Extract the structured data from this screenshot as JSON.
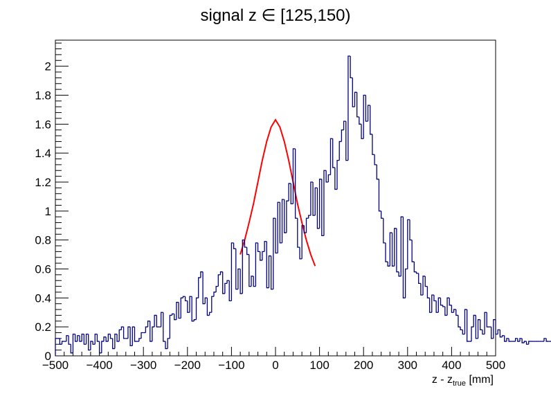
{
  "chart_data": {
    "type": "step",
    "title": "signal z ∈ [125,150)",
    "xlabel": {
      "main": "z - z",
      "subscript": "true",
      "unit": " [mm]"
    },
    "ylabel": "",
    "xlim": [
      -500,
      500
    ],
    "ylim": [
      0,
      2.18
    ],
    "grid": false,
    "legend": "none",
    "x_ticks": [
      -500,
      -400,
      -300,
      -200,
      -100,
      0,
      100,
      200,
      300,
      400,
      500
    ],
    "x_tick_labels": [
      "−500",
      "−400",
      "−300",
      "−200",
      "−100",
      "0",
      "100",
      "200",
      "300",
      "400",
      "500"
    ],
    "y_ticks": [
      0,
      0.2,
      0.4,
      0.6,
      0.8,
      1,
      1.2,
      1.4,
      1.6,
      1.8,
      2
    ],
    "y_tick_labels": [
      "0",
      "0.2",
      "0.4",
      "0.6",
      "0.8",
      "1",
      "1.2",
      "1.4",
      "1.6",
      "1.8",
      "2"
    ],
    "series": [
      {
        "kind": "histogram",
        "color": "#000080",
        "bin_edges_start": -500,
        "bin_width": 5,
        "values": [
          0.12,
          0.12,
          0.08,
          0.1,
          0.1,
          0.14,
          0.08,
          0.02,
          0.15,
          0.1,
          0.14,
          0.1,
          0.15,
          0.08,
          0.15,
          0.04,
          0.1,
          0.08,
          0.15,
          0.1,
          0.02,
          0.1,
          0.13,
          0.1,
          0.15,
          0.12,
          0.05,
          0.15,
          0.1,
          0.18,
          0.2,
          0.12,
          0.12,
          0.2,
          0.07,
          0.2,
          0.1,
          0.1,
          0.12,
          0.16,
          0.16,
          0.2,
          0.24,
          0.1,
          0.2,
          0.28,
          0.2,
          0.2,
          0.3,
          0.1,
          0.05,
          0.12,
          0.28,
          0.29,
          0.25,
          0.37,
          0.26,
          0.4,
          0.41,
          0.38,
          0.3,
          0.41,
          0.24,
          0.25,
          0.4,
          0.54,
          0.58,
          0.36,
          0.4,
          0.28,
          0.3,
          0.41,
          0.44,
          0.48,
          0.56,
          0.58,
          0.43,
          0.5,
          0.52,
          0.38,
          0.78,
          0.74,
          0.46,
          0.6,
          0.43,
          0.8,
          0.75,
          0.7,
          0.48,
          0.55,
          0.48,
          0.78,
          0.72,
          0.66,
          0.72,
          0.79,
          0.47,
          0.69,
          0.46,
          0.95,
          0.71,
          1.06,
          0.78,
          1.08,
          0.85,
          1.07,
          1.19,
          1.05,
          1.43,
          0.95,
          0.75,
          0.67,
          0.9,
          0.85,
          0.95,
          0.97,
          1.2,
          0.97,
          1.16,
          0.88,
          1.22,
          0.83,
          1.28,
          1.2,
          1.25,
          1.5,
          1.3,
          1.15,
          1.35,
          1.48,
          1.56,
          1.62,
          1.35,
          2.07,
          1.92,
          1.72,
          1.82,
          1.65,
          1.6,
          1.5,
          1.8,
          1.62,
          1.73,
          1.53,
          1.39,
          1.32,
          1.22,
          1.0,
          0.95,
          0.78,
          0.65,
          0.62,
          0.85,
          0.62,
          0.88,
          0.58,
          0.55,
          0.96,
          0.4,
          0.6,
          0.94,
          0.8,
          0.65,
          0.58,
          0.57,
          0.5,
          0.42,
          0.55,
          0.48,
          0.4,
          0.3,
          0.42,
          0.38,
          0.3,
          0.4,
          0.35,
          0.34,
          0.28,
          0.4,
          0.35,
          0.3,
          0.32,
          0.28,
          0.2,
          0.18,
          0.15,
          0.32,
          0.1,
          0.1,
          0.2,
          0.28,
          0.12,
          0.25,
          0.18,
          0.15,
          0.3,
          0.2,
          0.2,
          0.12,
          0.25,
          0.15,
          0.18,
          0.13,
          0.14,
          0.1,
          0.12,
          0.1,
          0.1,
          0.1,
          0.12,
          0.1,
          0.12,
          0.09,
          0.1,
          0.08,
          0.1,
          0.1,
          0.1,
          0.1,
          0.1,
          0.1,
          0.1,
          0.12,
          0.1,
          0.1,
          0.1,
          0.1,
          0.1,
          0.1,
          0.1,
          0.1,
          0.1,
          0.1,
          0.1,
          0.1,
          0.1,
          0.1,
          0.1,
          0.1,
          0.1,
          0.1,
          0.1,
          0.1,
          0.1,
          0.1
        ]
      },
      {
        "kind": "fit",
        "color": "#ff0000",
        "x": [
          -80,
          -70,
          -60,
          -50,
          -40,
          -30,
          -20,
          -10,
          0,
          10,
          20,
          30,
          40,
          50,
          60,
          70,
          80,
          90
        ],
        "values": [
          0.7,
          0.8,
          0.92,
          1.05,
          1.2,
          1.35,
          1.48,
          1.58,
          1.63,
          1.58,
          1.48,
          1.35,
          1.2,
          1.05,
          0.92,
          0.8,
          0.7,
          0.62
        ]
      }
    ]
  }
}
